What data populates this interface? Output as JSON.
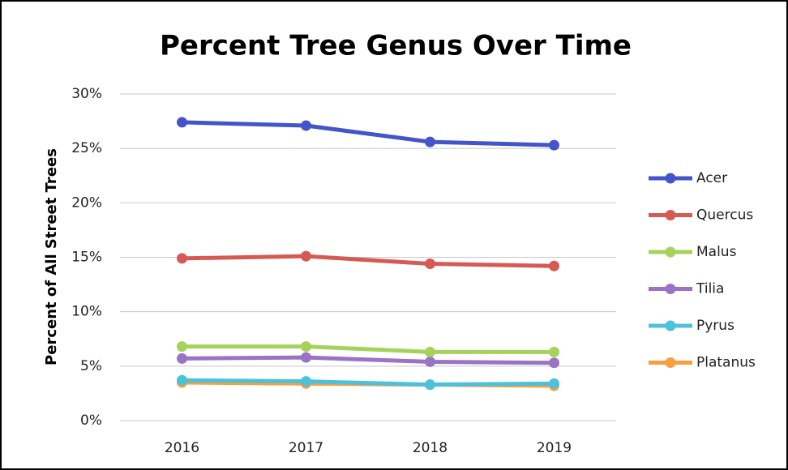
{
  "chart_data": {
    "type": "line",
    "title": "Percent Tree Genus Over Time",
    "y_label": "Percent of All Street Trees",
    "categories": [
      "2016",
      "2017",
      "2018",
      "2019"
    ],
    "series": [
      {
        "name": "Acer",
        "color": "#4355c9",
        "values": [
          27.4,
          27.1,
          25.6,
          25.3
        ]
      },
      {
        "name": "Quercus",
        "color": "#d65a54",
        "values": [
          14.9,
          15.1,
          14.4,
          14.2
        ]
      },
      {
        "name": "Malus",
        "color": "#a6d25b",
        "values": [
          6.8,
          6.8,
          6.3,
          6.3
        ]
      },
      {
        "name": "Tilia",
        "color": "#9a73c6",
        "values": [
          5.7,
          5.8,
          5.4,
          5.3
        ]
      },
      {
        "name": "Pyrus",
        "color": "#4cc1da",
        "values": [
          3.7,
          3.6,
          3.3,
          3.4
        ]
      },
      {
        "name": "Platanus",
        "color": "#f8a03f",
        "values": [
          3.5,
          3.4,
          3.3,
          3.2
        ]
      }
    ],
    "ylim": [
      0,
      30
    ],
    "yticks": [
      {
        "value": 0,
        "label": "0%"
      },
      {
        "value": 5,
        "label": "5%"
      },
      {
        "value": 10,
        "label": "10%"
      },
      {
        "value": 15,
        "label": "15%"
      },
      {
        "value": 20,
        "label": "20%"
      },
      {
        "value": 25,
        "label": "25%"
      },
      {
        "value": 30,
        "label": "30%"
      }
    ],
    "grid": true,
    "legend": "right"
  }
}
